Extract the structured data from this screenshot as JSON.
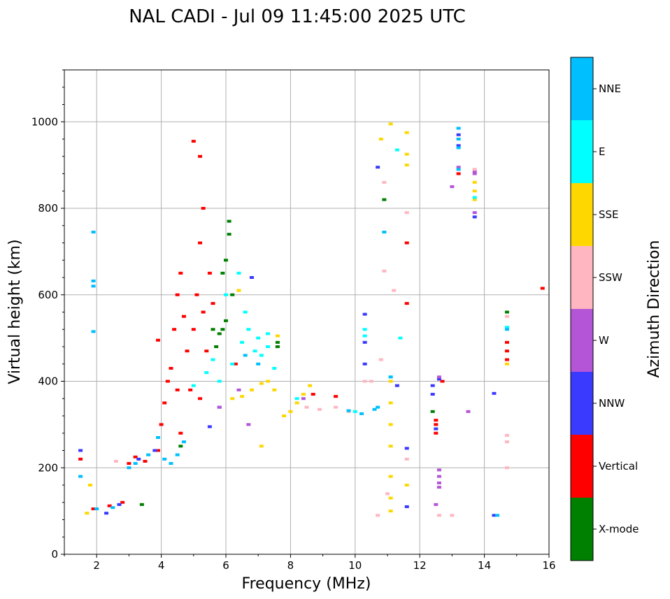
{
  "chart_data": {
    "type": "scatter",
    "title": "NAL CADI - Jul 09 11:45:00 2025 UTC",
    "xlabel": "Frequency (MHz)",
    "ylabel": "Virtual height (km)",
    "xlim": [
      1,
      16
    ],
    "ylim": [
      0,
      1120
    ],
    "xticks": [
      2,
      4,
      6,
      8,
      10,
      12,
      14,
      16
    ],
    "yticks": [
      0,
      200,
      400,
      600,
      800,
      1000
    ],
    "grid": true,
    "colorbar": {
      "label": "Azimuth Direction",
      "categories": [
        {
          "name": "X-mode",
          "color": "#008000"
        },
        {
          "name": "Vertical",
          "color": "#ff0000"
        },
        {
          "name": "NNW",
          "color": "#3a3aff"
        },
        {
          "name": "W",
          "color": "#b455d8"
        },
        {
          "name": "SSW",
          "color": "#ffb6c1"
        },
        {
          "name": "SSE",
          "color": "#ffd700"
        },
        {
          "name": "E",
          "color": "#00ffff"
        },
        {
          "name": "NNE",
          "color": "#00bfff"
        }
      ]
    },
    "series": [
      {
        "name": "Vertical",
        "points": [
          [
            1.5,
            220
          ],
          [
            1.9,
            105
          ],
          [
            2.4,
            112
          ],
          [
            2.8,
            120
          ],
          [
            3.0,
            210
          ],
          [
            3.2,
            225
          ],
          [
            3.5,
            215
          ],
          [
            3.9,
            240
          ],
          [
            4.0,
            300
          ],
          [
            4.1,
            350
          ],
          [
            4.2,
            400
          ],
          [
            4.3,
            430
          ],
          [
            4.4,
            520
          ],
          [
            4.5,
            600
          ],
          [
            4.6,
            650
          ],
          [
            4.7,
            550
          ],
          [
            4.8,
            470
          ],
          [
            5.0,
            520
          ],
          [
            5.1,
            600
          ],
          [
            5.2,
            720
          ],
          [
            5.3,
            560
          ],
          [
            5.4,
            470
          ],
          [
            5.5,
            650
          ],
          [
            5.6,
            580
          ],
          [
            4.5,
            380
          ],
          [
            4.9,
            380
          ],
          [
            5.2,
            360
          ],
          [
            5.0,
            955
          ],
          [
            5.2,
            920
          ],
          [
            5.3,
            800
          ],
          [
            6.3,
            440
          ],
          [
            8.7,
            370
          ],
          [
            9.4,
            365
          ],
          [
            11.6,
            720
          ],
          [
            11.6,
            580
          ],
          [
            12.5,
            310
          ],
          [
            12.5,
            300
          ],
          [
            12.5,
            280
          ],
          [
            12.7,
            400
          ],
          [
            13.2,
            880
          ],
          [
            14.7,
            490
          ],
          [
            14.7,
            470
          ],
          [
            14.7,
            450
          ],
          [
            15.8,
            615
          ],
          [
            3.9,
            495
          ],
          [
            4.6,
            280
          ]
        ]
      },
      {
        "name": "X-mode",
        "points": [
          [
            3.4,
            115
          ],
          [
            4.6,
            250
          ],
          [
            5.6,
            520
          ],
          [
            5.7,
            480
          ],
          [
            5.8,
            510
          ],
          [
            5.9,
            520
          ],
          [
            6.0,
            540
          ],
          [
            6.1,
            770
          ],
          [
            6.1,
            740
          ],
          [
            6.0,
            680
          ],
          [
            5.9,
            650
          ],
          [
            6.2,
            600
          ],
          [
            7.6,
            480
          ],
          [
            7.6,
            490
          ],
          [
            10.9,
            820
          ],
          [
            12.4,
            330
          ],
          [
            14.7,
            560
          ]
        ]
      },
      {
        "name": "NNW",
        "points": [
          [
            1.5,
            240
          ],
          [
            2.3,
            95
          ],
          [
            2.7,
            115
          ],
          [
            3.3,
            220
          ],
          [
            3.8,
            240
          ],
          [
            5.5,
            295
          ],
          [
            5.8,
            340
          ],
          [
            10.3,
            555
          ],
          [
            10.3,
            490
          ],
          [
            10.3,
            440
          ],
          [
            10.7,
            895
          ],
          [
            11.3,
            390
          ],
          [
            11.6,
            245
          ],
          [
            11.6,
            110
          ],
          [
            12.4,
            390
          ],
          [
            12.4,
            370
          ],
          [
            12.5,
            290
          ],
          [
            12.6,
            405
          ],
          [
            13.2,
            970
          ],
          [
            13.2,
            945
          ],
          [
            13.7,
            780
          ],
          [
            14.3,
            90
          ],
          [
            14.3,
            372
          ],
          [
            6.8,
            640
          ]
        ]
      },
      {
        "name": "W",
        "points": [
          [
            5.8,
            340
          ],
          [
            6.4,
            380
          ],
          [
            6.7,
            300
          ],
          [
            8.4,
            360
          ],
          [
            12.5,
            115
          ],
          [
            12.6,
            410
          ],
          [
            12.6,
            195
          ],
          [
            12.6,
            180
          ],
          [
            12.6,
            165
          ],
          [
            12.6,
            155
          ],
          [
            13.0,
            850
          ],
          [
            13.2,
            895
          ],
          [
            13.5,
            330
          ],
          [
            13.7,
            885
          ],
          [
            13.7,
            880
          ],
          [
            13.7,
            790
          ]
        ]
      },
      {
        "name": "SSW",
        "points": [
          [
            2.6,
            215
          ],
          [
            8.5,
            340
          ],
          [
            8.9,
            335
          ],
          [
            9.4,
            340
          ],
          [
            9.8,
            330
          ],
          [
            10.3,
            400
          ],
          [
            10.5,
            400
          ],
          [
            10.7,
            90
          ],
          [
            10.9,
            655
          ],
          [
            10.9,
            860
          ],
          [
            11.2,
            610
          ],
          [
            11.6,
            790
          ],
          [
            11.6,
            220
          ],
          [
            12.6,
            90
          ],
          [
            13.0,
            90
          ],
          [
            13.7,
            890
          ],
          [
            14.7,
            550
          ],
          [
            14.7,
            275
          ],
          [
            14.7,
            260
          ],
          [
            14.7,
            200
          ],
          [
            10.8,
            450
          ],
          [
            11.0,
            140
          ]
        ]
      },
      {
        "name": "SSE",
        "points": [
          [
            1.7,
            95
          ],
          [
            1.8,
            160
          ],
          [
            6.2,
            360
          ],
          [
            6.5,
            365
          ],
          [
            6.8,
            380
          ],
          [
            7.1,
            395
          ],
          [
            7.3,
            400
          ],
          [
            7.5,
            380
          ],
          [
            7.6,
            505
          ],
          [
            7.8,
            320
          ],
          [
            8.0,
            330
          ],
          [
            8.2,
            350
          ],
          [
            8.4,
            370
          ],
          [
            8.6,
            390
          ],
          [
            7.1,
            250
          ],
          [
            10.8,
            960
          ],
          [
            11.1,
            995
          ],
          [
            11.1,
            400
          ],
          [
            11.1,
            350
          ],
          [
            11.1,
            300
          ],
          [
            11.1,
            250
          ],
          [
            11.1,
            180
          ],
          [
            11.1,
            130
          ],
          [
            11.1,
            100
          ],
          [
            11.6,
            975
          ],
          [
            11.6,
            925
          ],
          [
            11.6,
            900
          ],
          [
            11.6,
            160
          ],
          [
            13.7,
            860
          ],
          [
            13.7,
            840
          ],
          [
            13.7,
            820
          ],
          [
            14.7,
            440
          ],
          [
            6.4,
            610
          ]
        ]
      },
      {
        "name": "E",
        "points": [
          [
            5.0,
            390
          ],
          [
            5.4,
            420
          ],
          [
            5.8,
            400
          ],
          [
            6.2,
            440
          ],
          [
            6.5,
            490
          ],
          [
            6.7,
            520
          ],
          [
            6.9,
            470
          ],
          [
            7.1,
            460
          ],
          [
            7.3,
            480
          ],
          [
            7.5,
            430
          ],
          [
            6.0,
            600
          ],
          [
            6.6,
            560
          ],
          [
            7.0,
            500
          ],
          [
            7.3,
            510
          ],
          [
            8.2,
            360
          ],
          [
            10.0,
            330
          ],
          [
            10.3,
            520
          ],
          [
            10.3,
            505
          ],
          [
            11.1,
            410
          ],
          [
            11.3,
            935
          ],
          [
            11.4,
            500
          ],
          [
            13.7,
            825
          ],
          [
            14.7,
            525
          ],
          [
            5.6,
            450
          ],
          [
            6.4,
            650
          ]
        ]
      },
      {
        "name": "NNE",
        "points": [
          [
            1.5,
            180
          ],
          [
            1.9,
            632
          ],
          [
            1.9,
            620
          ],
          [
            1.9,
            515
          ],
          [
            1.9,
            745
          ],
          [
            2.0,
            105
          ],
          [
            2.5,
            108
          ],
          [
            3.0,
            200
          ],
          [
            3.2,
            210
          ],
          [
            3.6,
            230
          ],
          [
            3.9,
            270
          ],
          [
            4.1,
            220
          ],
          [
            4.3,
            210
          ],
          [
            4.5,
            230
          ],
          [
            4.7,
            260
          ],
          [
            9.8,
            332
          ],
          [
            10.2,
            325
          ],
          [
            10.6,
            335
          ],
          [
            10.7,
            340
          ],
          [
            10.9,
            745
          ],
          [
            11.1,
            410
          ],
          [
            13.2,
            985
          ],
          [
            13.2,
            960
          ],
          [
            13.2,
            940
          ],
          [
            13.2,
            890
          ],
          [
            14.4,
            90
          ],
          [
            14.7,
            520
          ],
          [
            6.6,
            460
          ],
          [
            7.0,
            440
          ]
        ]
      }
    ]
  }
}
